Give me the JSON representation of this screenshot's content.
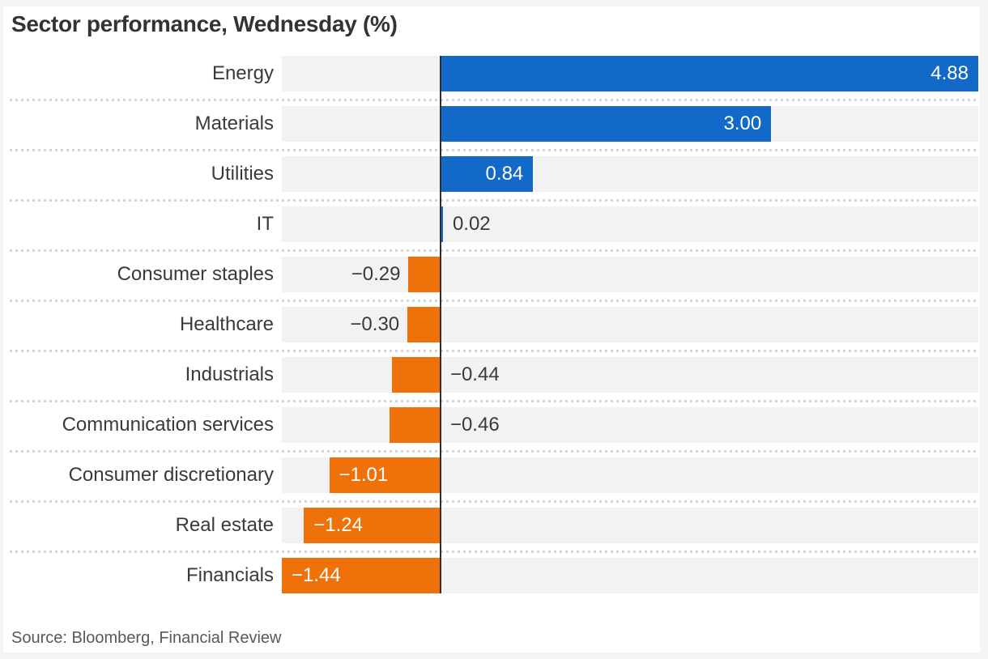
{
  "title": "Sector performance, Wednesday (%)",
  "source": "Source: Bloomberg, Financial Review",
  "colors": {
    "positive_bar": "#1269c8",
    "negative_bar": "#ef7109",
    "row_track": "#f2f2f2",
    "zero_axis": "#2f2f2f",
    "value_text_dark": "#3a3a3a",
    "value_text_light": "#ffffff",
    "separator_dots": "#d4d4d4",
    "frame": "#f4f4f4"
  },
  "chart_data": {
    "type": "bar",
    "orientation": "horizontal",
    "title": "Sector performance, Wednesday (%)",
    "unit": "%",
    "xlim": [
      -1.44,
      4.88
    ],
    "grid": "dotted row separators, zero axis line",
    "legend": "none",
    "categories": [
      "Energy",
      "Materials",
      "Utilities",
      "IT",
      "Consumer staples",
      "Healthcare",
      "Industrials",
      "Communication services",
      "Consumer discretionary",
      "Real estate",
      "Financials"
    ],
    "values": [
      4.88,
      3.0,
      0.84,
      0.02,
      -0.29,
      -0.3,
      -0.44,
      -0.46,
      -1.01,
      -1.24,
      -1.44
    ],
    "rows": [
      {
        "label": "Energy",
        "value": 4.88,
        "display": "4.88",
        "value_label_position": "inside-right"
      },
      {
        "label": "Materials",
        "value": 3.0,
        "display": "3.00",
        "value_label_position": "inside-right"
      },
      {
        "label": "Utilities",
        "value": 0.84,
        "display": "0.84",
        "value_label_position": "inside-right"
      },
      {
        "label": "IT",
        "value": 0.02,
        "display": "0.02",
        "value_label_position": "outside-right"
      },
      {
        "label": "Consumer staples",
        "value": -0.29,
        "display": "−0.29",
        "value_label_position": "outside-left"
      },
      {
        "label": "Healthcare",
        "value": -0.3,
        "display": "−0.30",
        "value_label_position": "outside-left"
      },
      {
        "label": "Industrials",
        "value": -0.44,
        "display": "−0.44",
        "value_label_position": "outside-right"
      },
      {
        "label": "Communication services",
        "value": -0.46,
        "display": "−0.46",
        "value_label_position": "outside-right"
      },
      {
        "label": "Consumer discretionary",
        "value": -1.01,
        "display": "−1.01",
        "value_label_position": "inside-left"
      },
      {
        "label": "Real estate",
        "value": -1.24,
        "display": "−1.24",
        "value_label_position": "inside-left"
      },
      {
        "label": "Financials",
        "value": -1.44,
        "display": "−1.44",
        "value_label_position": "inside-left"
      }
    ]
  }
}
